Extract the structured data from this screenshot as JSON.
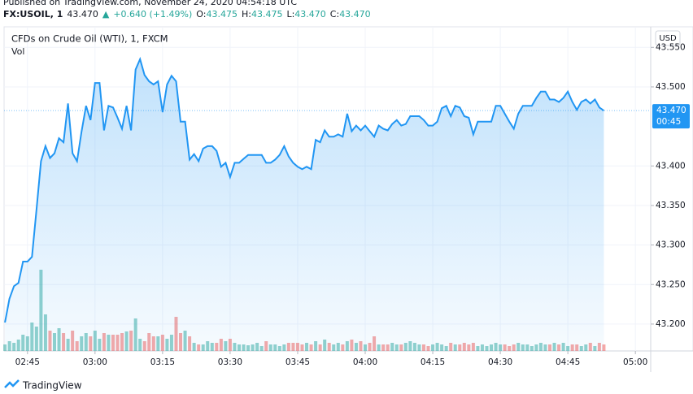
{
  "header": {
    "published": "Published on TradingView.com, November 24, 2020 04:54:18 UTC",
    "symbol": "FX:USOIL, 1",
    "last": "43.470",
    "arrow": "▲",
    "change": "+0.640 (+1.49%)",
    "o_label": "O:",
    "o": "43.475",
    "h_label": "H:",
    "h": "43.475",
    "l_label": "L:",
    "l": "43.470",
    "c_label": "C:",
    "c": "43.470"
  },
  "chart_data": {
    "type": "area",
    "title": "CFDs on Crude Oil (WTI), 1, FXCM",
    "volume_title": "Vol",
    "currency": "USD",
    "last_label": "43.470",
    "countdown": "00:45",
    "color": "#2196f3",
    "x": [
      160,
      161,
      162,
      163,
      164,
      165,
      166,
      167,
      168,
      169,
      170,
      171,
      172,
      173,
      174,
      175,
      176,
      177,
      178,
      179,
      180,
      181,
      182,
      183,
      184,
      185,
      186,
      187,
      188,
      189,
      190,
      191,
      192,
      193,
      194,
      195,
      196,
      197,
      198,
      199,
      200,
      201,
      202,
      203,
      204,
      205,
      206,
      207,
      208,
      209,
      210,
      211,
      212,
      213,
      214,
      215,
      216,
      217,
      218,
      219,
      220,
      221,
      222,
      223,
      224,
      225,
      226,
      227,
      228,
      229,
      230,
      231,
      232,
      233,
      234,
      235,
      236,
      237,
      238,
      239,
      240,
      241,
      242,
      243,
      244,
      245,
      246,
      247,
      248,
      249,
      250,
      251,
      252,
      253,
      254,
      255,
      256,
      257,
      258,
      259,
      260,
      261,
      262,
      263,
      264,
      265,
      266,
      267,
      268,
      269,
      270,
      271,
      272,
      273,
      274,
      275,
      276,
      277,
      278,
      279,
      280,
      281,
      282,
      283,
      284,
      285,
      286,
      287,
      288,
      289,
      290,
      291,
      292,
      293
    ],
    "series": [
      {
        "name": "Price",
        "color": "#2196f3",
        "values": [
          43.202,
          43.232,
          43.248,
          43.252,
          43.279,
          43.279,
          43.285,
          43.345,
          43.406,
          43.425,
          43.41,
          43.416,
          43.435,
          43.43,
          43.479,
          43.416,
          43.406,
          43.443,
          43.476,
          43.458,
          43.505,
          43.505,
          43.445,
          43.476,
          43.474,
          43.461,
          43.447,
          43.476,
          43.445,
          43.522,
          43.535,
          43.515,
          43.507,
          43.503,
          43.507,
          43.468,
          43.503,
          43.514,
          43.507,
          43.456,
          43.456,
          43.408,
          43.415,
          43.406,
          43.422,
          43.425,
          43.425,
          43.419,
          43.399,
          43.404,
          43.386,
          43.404,
          43.404,
          43.409,
          43.414,
          43.414,
          43.414,
          43.414,
          43.404,
          43.404,
          43.408,
          43.414,
          43.425,
          43.412,
          43.404,
          43.399,
          43.396,
          43.399,
          43.396,
          43.433,
          43.43,
          43.445,
          43.437,
          43.437,
          43.44,
          43.437,
          43.466,
          43.444,
          43.451,
          43.445,
          43.451,
          43.444,
          43.437,
          43.451,
          43.447,
          43.445,
          43.453,
          43.458,
          43.451,
          43.453,
          43.463,
          43.463,
          43.463,
          43.458,
          43.451,
          43.451,
          43.456,
          43.473,
          43.476,
          43.463,
          43.476,
          43.474,
          43.463,
          43.461,
          43.44,
          43.456,
          43.456,
          43.456,
          43.456,
          43.476,
          43.476,
          43.466,
          43.456,
          43.447,
          43.466,
          43.476,
          43.476,
          43.476,
          43.486,
          43.494,
          43.494,
          43.484,
          43.484,
          43.481,
          43.486,
          43.494,
          43.481,
          43.471,
          43.481,
          43.484,
          43.479,
          43.484,
          43.474,
          43.47
        ]
      },
      {
        "name": "Vol",
        "values": [
          8,
          12,
          10,
          14,
          20,
          18,
          35,
          30,
          100,
          45,
          25,
          22,
          28,
          22,
          15,
          25,
          12,
          18,
          22,
          18,
          25,
          15,
          22,
          20,
          20,
          20,
          22,
          24,
          25,
          40,
          15,
          12,
          22,
          18,
          18,
          20,
          15,
          20,
          42,
          22,
          25,
          18,
          10,
          8,
          8,
          12,
          10,
          10,
          15,
          12,
          15,
          10,
          8,
          8,
          7,
          8,
          10,
          6,
          12,
          8,
          8,
          6,
          8,
          10,
          10,
          10,
          8,
          10,
          8,
          12,
          8,
          14,
          10,
          8,
          10,
          8,
          12,
          14,
          10,
          12,
          8,
          10,
          18,
          8,
          8,
          8,
          10,
          8,
          8,
          10,
          12,
          10,
          8,
          8,
          6,
          8,
          10,
          8,
          6,
          10,
          8,
          8,
          10,
          8,
          10,
          6,
          8,
          6,
          8,
          10,
          8,
          8,
          6,
          8,
          10,
          8,
          8,
          6,
          8,
          10,
          8,
          8,
          10,
          8,
          10,
          6,
          8,
          8,
          6,
          8,
          10,
          6,
          10,
          8
        ]
      }
    ],
    "xlim": [
      159.8,
      303.4
    ],
    "xticks": [
      {
        "value": 165,
        "label": "02:45"
      },
      {
        "value": 180,
        "label": "03:00"
      },
      {
        "value": 195,
        "label": "03:15"
      },
      {
        "value": 210,
        "label": "03:30"
      },
      {
        "value": 225,
        "label": "03:45"
      },
      {
        "value": 240,
        "label": "04:00"
      },
      {
        "value": 255,
        "label": "04:15"
      },
      {
        "value": 270,
        "label": "04:30"
      },
      {
        "value": 285,
        "label": "04:45"
      },
      {
        "value": 300,
        "label": "05:00"
      }
    ],
    "ylim": [
      43.166,
      43.576
    ],
    "yticks": [
      {
        "value": 43.2,
        "label": "43.200"
      },
      {
        "value": 43.25,
        "label": "43.250"
      },
      {
        "value": 43.3,
        "label": "43.300"
      },
      {
        "value": 43.35,
        "label": "43.350"
      },
      {
        "value": 43.4,
        "label": "43.400"
      },
      {
        "value": 43.5,
        "label": "43.500"
      },
      {
        "value": 43.55,
        "label": "43.550"
      }
    ],
    "grid": true
  },
  "footer": {
    "brand": "TradingView"
  }
}
